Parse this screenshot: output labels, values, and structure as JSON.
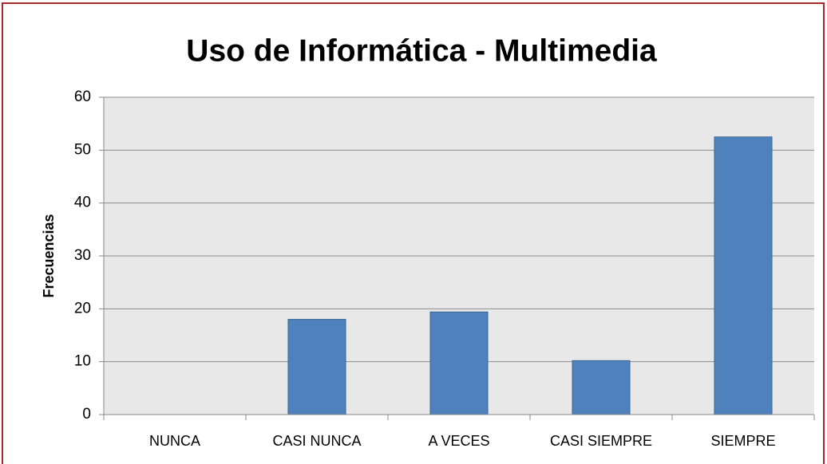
{
  "chart_data": {
    "type": "bar",
    "title": "Uso de Informática - Multimedia",
    "y_label": "Frecuencias",
    "categories": [
      "NUNCA",
      "CASI NUNCA",
      "A VECES",
      "CASI SIEMPRE",
      "SIEMPRE"
    ],
    "values": [
      0,
      18,
      19.4,
      10.2,
      52.5
    ],
    "color": "#4f81bd",
    "ylim": [
      0,
      60
    ],
    "yticks": [
      0,
      10,
      20,
      30,
      40,
      50,
      60
    ],
    "grid": true
  }
}
